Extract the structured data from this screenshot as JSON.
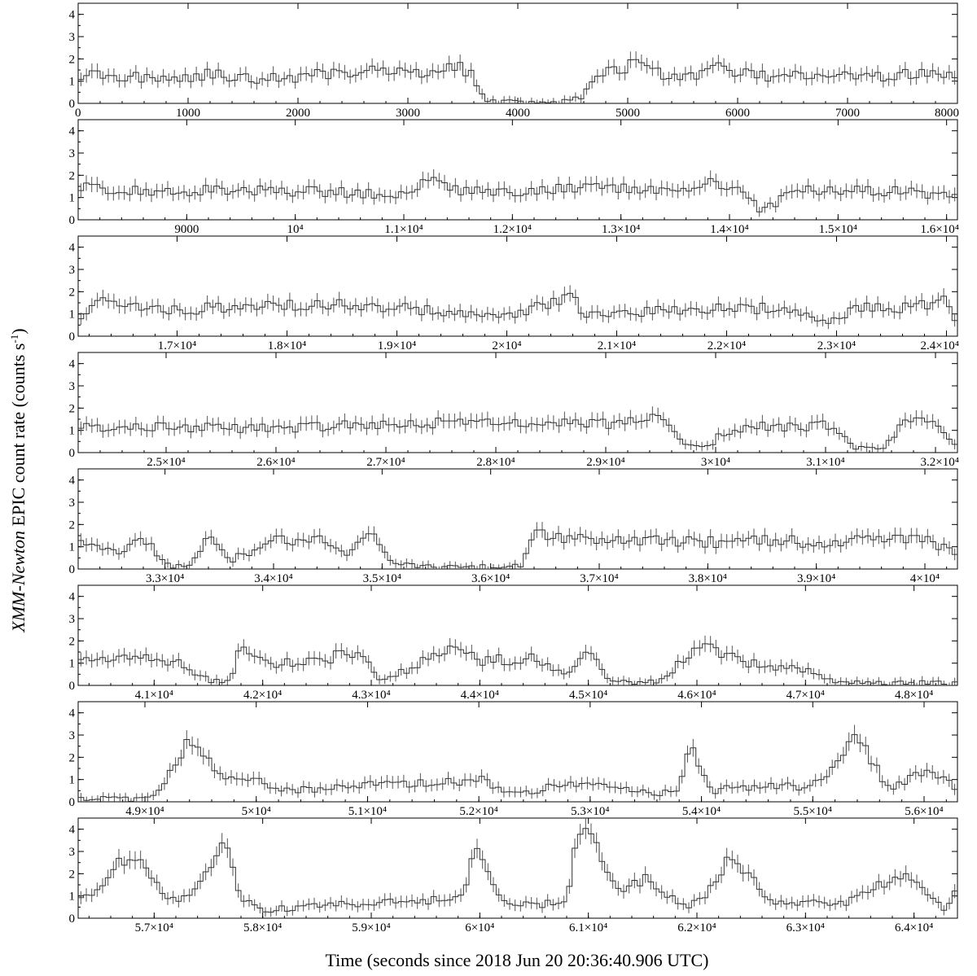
{
  "figure": {
    "ylabel_prefix": "XMM-Newton",
    "ylabel_main": " EPIC count rate   (counts s",
    "ylabel_sup": "-1",
    "ylabel_close": ")",
    "xlabel": "Time (seconds since 2018 Jun 20 20:36:40.906 UTC)"
  },
  "chart_data": [
    {
      "type": "line",
      "panel": 1,
      "xlim": [
        0,
        8000
      ],
      "ylim": [
        0,
        4.5
      ],
      "yticks": [
        0,
        1,
        2,
        3,
        4
      ],
      "xticks": [
        {
          "v": 0,
          "t": "0"
        },
        {
          "v": 1000,
          "t": "1000"
        },
        {
          "v": 2000,
          "t": "2000"
        },
        {
          "v": 3000,
          "t": "3000"
        },
        {
          "v": 4000,
          "t": "4000"
        },
        {
          "v": 5000,
          "t": "5000"
        },
        {
          "v": 6000,
          "t": "6000"
        },
        {
          "v": 7000,
          "t": "7000"
        },
        {
          "v": 8000,
          "t": "8000"
        }
      ],
      "x": [
        0,
        400,
        800,
        1200,
        1600,
        2000,
        2400,
        2800,
        3000,
        3200,
        3450,
        3600,
        3700,
        3800,
        4000,
        4200,
        4400,
        4550,
        4700,
        4850,
        4950,
        5050,
        5200,
        5400,
        5600,
        5800,
        6000,
        6200,
        6400,
        6600,
        6800,
        7000,
        7200,
        7400,
        7600,
        7800,
        8000
      ],
      "y": [
        1.3,
        1.2,
        1.1,
        1.3,
        1.1,
        1.2,
        1.4,
        1.5,
        1.6,
        1.3,
        1.7,
        1.2,
        0.2,
        0.05,
        0.1,
        0.05,
        0.05,
        0.2,
        0.9,
        1.6,
        1.0,
        2.3,
        1.5,
        1.1,
        1.2,
        1.6,
        1.4,
        1.2,
        1.3,
        1.2,
        1.4,
        1.3,
        1.1,
        1.3,
        1.3,
        1.3,
        1.2
      ]
    },
    {
      "type": "line",
      "panel": 2,
      "xlim": [
        8000,
        16100
      ],
      "ylim": [
        0,
        4.5
      ],
      "yticks": [
        0,
        1,
        2,
        3,
        4
      ],
      "xticks": [
        {
          "v": 9000,
          "t": "9000"
        },
        {
          "v": 10000,
          "t": "10⁴"
        },
        {
          "v": 11000,
          "t": "1.1×10⁴"
        },
        {
          "v": 12000,
          "t": "1.2×10⁴"
        },
        {
          "v": 13000,
          "t": "1.3×10⁴"
        },
        {
          "v": 14000,
          "t": "1.4×10⁴"
        },
        {
          "v": 15000,
          "t": "1.5×10⁴"
        },
        {
          "v": 16000,
          "t": "1.6×10⁴"
        }
      ],
      "x": [
        8000,
        8500,
        9000,
        9500,
        10000,
        10500,
        11000,
        11200,
        11500,
        12000,
        12500,
        13000,
        13500,
        13900,
        14100,
        14300,
        14600,
        15000,
        15500,
        16000
      ],
      "y": [
        1.5,
        1.3,
        1.3,
        1.3,
        1.3,
        1.2,
        1.2,
        1.8,
        1.3,
        1.3,
        1.4,
        1.4,
        1.2,
        1.7,
        1.2,
        0.4,
        1.3,
        1.3,
        1.3,
        1.1
      ]
    },
    {
      "type": "line",
      "panel": 3,
      "xlim": [
        16100,
        24100
      ],
      "ylim": [
        0,
        4.5
      ],
      "yticks": [
        0,
        1,
        2,
        3,
        4
      ],
      "xticks": [
        {
          "v": 17000,
          "t": "1.7×10⁴"
        },
        {
          "v": 18000,
          "t": "1.8×10⁴"
        },
        {
          "v": 19000,
          "t": "1.9×10⁴"
        },
        {
          "v": 20000,
          "t": "2×10⁴"
        },
        {
          "v": 21000,
          "t": "2.1×10⁴"
        },
        {
          "v": 22000,
          "t": "2.2×10⁴"
        },
        {
          "v": 23000,
          "t": "2.3×10⁴"
        },
        {
          "v": 24000,
          "t": "2.4×10⁴"
        }
      ],
      "x": [
        16100,
        16300,
        16600,
        17000,
        17500,
        18000,
        18500,
        19000,
        19500,
        20000,
        20300,
        20600,
        20700,
        21000,
        21500,
        22000,
        22500,
        22900,
        23200,
        23600,
        24000,
        24100
      ],
      "y": [
        0.8,
        1.6,
        1.3,
        1.2,
        1.3,
        1.4,
        1.4,
        1.3,
        1.0,
        1.0,
        1.3,
        1.8,
        0.9,
        1.0,
        1.2,
        1.2,
        1.3,
        0.6,
        1.3,
        1.3,
        1.6,
        0.6
      ]
    },
    {
      "type": "line",
      "panel": 4,
      "xlim": [
        24200,
        32200
      ],
      "ylim": [
        0,
        4.5
      ],
      "yticks": [
        0,
        1,
        2,
        3,
        4
      ],
      "xticks": [
        {
          "v": 25000,
          "t": "2.5×10⁴"
        },
        {
          "v": 26000,
          "t": "2.6×10⁴"
        },
        {
          "v": 27000,
          "t": "2.7×10⁴"
        },
        {
          "v": 28000,
          "t": "2.8×10⁴"
        },
        {
          "v": 29000,
          "t": "2.9×10⁴"
        },
        {
          "v": 30000,
          "t": "3×10⁴"
        },
        {
          "v": 31000,
          "t": "3.1×10⁴"
        },
        {
          "v": 32000,
          "t": "3.2×10⁴"
        }
      ],
      "x": [
        24200,
        25000,
        26000,
        27000,
        28000,
        29000,
        29500,
        29700,
        29900,
        30100,
        30500,
        31000,
        31300,
        31500,
        31700,
        32000,
        32200
      ],
      "y": [
        1.2,
        1.1,
        1.1,
        1.3,
        1.4,
        1.3,
        1.5,
        0.5,
        0.1,
        1.0,
        1.2,
        1.2,
        0.2,
        0.1,
        1.3,
        1.5,
        0.2
      ]
    },
    {
      "type": "line",
      "panel": 5,
      "xlim": [
        32200,
        40300
      ],
      "ylim": [
        0,
        4.5
      ],
      "yticks": [
        0,
        1,
        2,
        3,
        4
      ],
      "xticks": [
        {
          "v": 33000,
          "t": "3.3×10⁴"
        },
        {
          "v": 34000,
          "t": "3.4×10⁴"
        },
        {
          "v": 35000,
          "t": "3.5×10⁴"
        },
        {
          "v": 36000,
          "t": "3.6×10⁴"
        },
        {
          "v": 37000,
          "t": "3.7×10⁴"
        },
        {
          "v": 38000,
          "t": "3.8×10⁴"
        },
        {
          "v": 39000,
          "t": "3.9×10⁴"
        },
        {
          "v": 40000,
          "t": "4×10⁴"
        }
      ],
      "x": [
        32200,
        32600,
        32800,
        33000,
        33200,
        33400,
        33600,
        34000,
        34500,
        34700,
        34900,
        35100,
        35500,
        36000,
        36300,
        36400,
        37000,
        37500,
        38000,
        38500,
        39000,
        39500,
        40000,
        40300
      ],
      "y": [
        1.4,
        0.6,
        1.5,
        0.2,
        0.1,
        1.3,
        0.4,
        1.3,
        1.3,
        0.6,
        1.7,
        0.2,
        0.1,
        0.1,
        0.2,
        1.6,
        1.2,
        1.3,
        1.2,
        1.3,
        1.2,
        1.4,
        1.4,
        0.6
      ]
    },
    {
      "type": "line",
      "panel": 6,
      "xlim": [
        40300,
        48400
      ],
      "ylim": [
        0,
        4.5
      ],
      "yticks": [
        0,
        1,
        2,
        3,
        4
      ],
      "xticks": [
        {
          "v": 41000,
          "t": "4.1×10⁴"
        },
        {
          "v": 42000,
          "t": "4.2×10⁴"
        },
        {
          "v": 43000,
          "t": "4.3×10⁴"
        },
        {
          "v": 44000,
          "t": "4.4×10⁴"
        },
        {
          "v": 45000,
          "t": "4.5×10⁴"
        },
        {
          "v": 46000,
          "t": "4.6×10⁴"
        },
        {
          "v": 47000,
          "t": "4.7×10⁴"
        },
        {
          "v": 48000,
          "t": "4.8×10⁴"
        }
      ],
      "x": [
        40300,
        41000,
        41300,
        41500,
        41700,
        41800,
        42000,
        42500,
        42900,
        43100,
        43500,
        43800,
        44000,
        44500,
        44800,
        45000,
        45200,
        45500,
        45700,
        46000,
        46200,
        46500,
        47000,
        47300,
        48000,
        48400
      ],
      "y": [
        1.2,
        1.2,
        0.9,
        0.2,
        0.2,
        1.9,
        1.0,
        1.1,
        1.6,
        0.2,
        1.1,
        1.7,
        1.1,
        1.2,
        0.4,
        1.5,
        0.2,
        0.1,
        0.3,
        1.8,
        1.5,
        1.0,
        0.7,
        0.15,
        0.1,
        0.1
      ]
    },
    {
      "type": "line",
      "panel": 7,
      "xlim": [
        48400,
        56300
      ],
      "ylim": [
        0,
        4.5
      ],
      "yticks": [
        0,
        1,
        2,
        3,
        4
      ],
      "xticks": [
        {
          "v": 49000,
          "t": "4.9×10⁴"
        },
        {
          "v": 50000,
          "t": "5×10⁴"
        },
        {
          "v": 51000,
          "t": "5.1×10⁴"
        },
        {
          "v": 52000,
          "t": "5.2×10⁴"
        },
        {
          "v": 53000,
          "t": "5.3×10⁴"
        },
        {
          "v": 54000,
          "t": "5.4×10⁴"
        },
        {
          "v": 55000,
          "t": "5.5×10⁴"
        },
        {
          "v": 56000,
          "t": "5.6×10⁴"
        }
      ],
      "x": [
        48400,
        48800,
        49100,
        49200,
        49400,
        49700,
        50000,
        50200,
        50500,
        51000,
        51500,
        52000,
        52300,
        52800,
        53300,
        53600,
        53800,
        53900,
        54100,
        54500,
        55000,
        55200,
        55400,
        55700,
        56000,
        56300
      ],
      "y": [
        0.2,
        0.1,
        0.2,
        1.2,
        2.8,
        1.0,
        1.1,
        0.6,
        0.5,
        0.8,
        0.8,
        1.0,
        0.3,
        0.8,
        0.7,
        0.3,
        0.7,
        2.6,
        0.5,
        0.7,
        0.7,
        1.6,
        3.0,
        0.5,
        1.5,
        0.6
      ]
    },
    {
      "type": "line",
      "panel": 8,
      "xlim": [
        56300,
        64400
      ],
      "ylim": [
        0,
        4.5
      ],
      "yticks": [
        0,
        1,
        2,
        3,
        4
      ],
      "xticks": [
        {
          "v": 57000,
          "t": "5.7×10⁴"
        },
        {
          "v": 58000,
          "t": "5.8×10⁴"
        },
        {
          "v": 59000,
          "t": "5.9×10⁴"
        },
        {
          "v": 60000,
          "t": "6×10⁴"
        },
        {
          "v": 61000,
          "t": "6.1×10⁴"
        },
        {
          "v": 62000,
          "t": "6.2×10⁴"
        },
        {
          "v": 63000,
          "t": "6.3×10⁴"
        },
        {
          "v": 64000,
          "t": "6.4×10⁴"
        }
      ],
      "x": [
        56300,
        56500,
        56700,
        56900,
        57100,
        57300,
        57500,
        57650,
        57800,
        58000,
        58500,
        59000,
        59500,
        59850,
        59950,
        60200,
        60800,
        60900,
        61000,
        61300,
        61500,
        61900,
        62100,
        62300,
        62700,
        63300,
        63600,
        63900,
        64300,
        64400
      ],
      "y": [
        0.8,
        1.5,
        2.6,
        2.5,
        0.7,
        1.0,
        2.0,
        3.4,
        1.0,
        0.3,
        0.6,
        0.7,
        0.8,
        1.0,
        3.5,
        0.7,
        0.6,
        3.8,
        4.0,
        1.0,
        1.8,
        0.4,
        1.0,
        2.8,
        0.8,
        0.6,
        1.2,
        2.0,
        0.4,
        1.6
      ]
    }
  ]
}
